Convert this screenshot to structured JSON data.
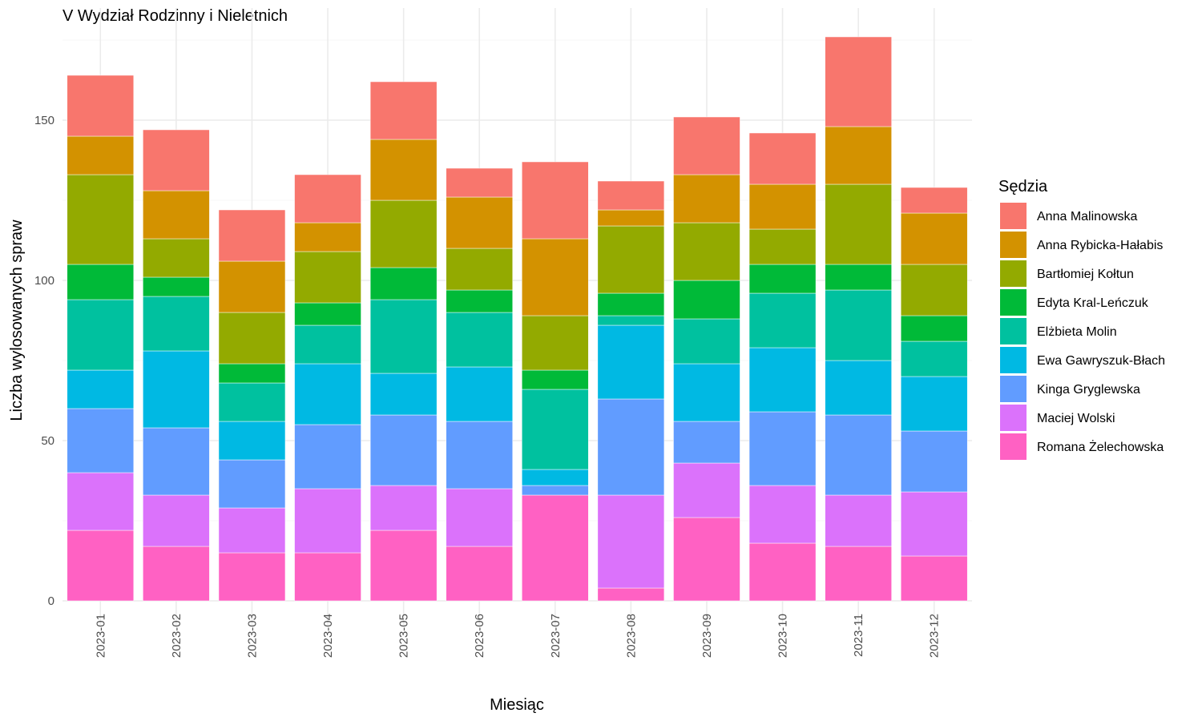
{
  "chart_data": {
    "type": "bar",
    "stacked": true,
    "title": "V Wydział Rodzinny i Nieletnich",
    "xlabel": "Miesiąc",
    "ylabel": "Liczba wylosowanych spraw",
    "ylim": [
      0,
      180
    ],
    "yticks": [
      0,
      50,
      100,
      150
    ],
    "grid": true,
    "legend_title": "Sędzia",
    "legend_position": "right",
    "categories": [
      "2023-01",
      "2023-02",
      "2023-03",
      "2023-04",
      "2023-05",
      "2023-06",
      "2023-07",
      "2023-08",
      "2023-09",
      "2023-10",
      "2023-11",
      "2023-12"
    ],
    "series": [
      {
        "name": "Romana Żelechowska",
        "color": "#FF61C3",
        "values": [
          22,
          17,
          15,
          15,
          22,
          17,
          33,
          4,
          26,
          18,
          17,
          14
        ]
      },
      {
        "name": "Maciej Wolski",
        "color": "#DB72FB",
        "values": [
          18,
          16,
          14,
          20,
          14,
          18,
          0,
          29,
          17,
          18,
          16,
          20
        ]
      },
      {
        "name": "Kinga Gryglewska",
        "color": "#619CFF",
        "values": [
          20,
          21,
          15,
          20,
          22,
          21,
          3,
          30,
          13,
          23,
          25,
          19
        ]
      },
      {
        "name": "Ewa Gawryszuk-Błach",
        "color": "#00B9E3",
        "values": [
          12,
          24,
          12,
          19,
          13,
          17,
          5,
          23,
          18,
          20,
          17,
          17
        ]
      },
      {
        "name": "Elżbieta Molin",
        "color": "#00C19F",
        "values": [
          22,
          17,
          12,
          12,
          23,
          17,
          25,
          3,
          14,
          17,
          22,
          11
        ]
      },
      {
        "name": "Edyta Kral-Leńczuk",
        "color": "#00BA38",
        "values": [
          11,
          6,
          6,
          7,
          10,
          7,
          6,
          7,
          12,
          9,
          8,
          8
        ]
      },
      {
        "name": "Bartłomiej Kołtun",
        "color": "#93AA00",
        "values": [
          28,
          12,
          16,
          16,
          21,
          13,
          17,
          21,
          18,
          11,
          25,
          16
        ]
      },
      {
        "name": "Anna Rybicka-Hałabis",
        "color": "#D39200",
        "values": [
          12,
          15,
          16,
          9,
          19,
          16,
          24,
          5,
          15,
          14,
          18,
          16
        ]
      },
      {
        "name": "Anna Malinowska",
        "color": "#F8766D",
        "values": [
          19,
          19,
          16,
          15,
          18,
          9,
          24,
          9,
          18,
          16,
          28,
          8
        ]
      }
    ]
  }
}
